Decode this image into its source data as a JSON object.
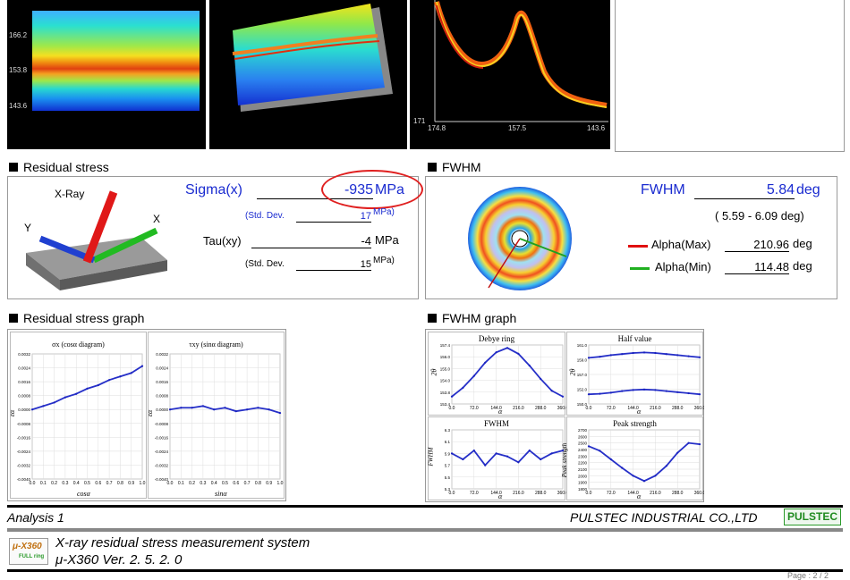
{
  "top_panels": {
    "p1_ticks": [
      "166.2",
      "153.8",
      "143.6"
    ],
    "p3_xticks": [
      "174.8",
      "157.5",
      "143.6"
    ],
    "p3_yticks": [
      "171"
    ]
  },
  "residual": {
    "heading": "Residual stress",
    "xray_label": "X-Ray",
    "x_label": "X",
    "y_label": "Y",
    "sigma_label": "Sigma(x)",
    "sigma_value": "-935",
    "sigma_unit": "MPa",
    "std1_label": "(Std. Dev.",
    "std1_value": "17",
    "std1_unit": "MPa)",
    "tau_label": "Tau(xy)",
    "tau_value": "-4",
    "tau_unit": "MPa",
    "std2_label": "(Std. Dev.",
    "std2_value": "15",
    "std2_unit": "MPa)"
  },
  "fwhm": {
    "heading": "FWHM",
    "label": "FWHM",
    "value": "5.84",
    "unit": "deg",
    "range": "( 5.59 - 6.09 deg)",
    "alpha_max_label": "Alpha(Max)",
    "alpha_max_value": "210.96",
    "alpha_max_unit": "deg",
    "alpha_min_label": "Alpha(Min)",
    "alpha_min_value": "114.48",
    "alpha_min_unit": "deg",
    "max_color": "#e01010",
    "min_color": "#20b020"
  },
  "rs_graph": {
    "heading": "Residual stress graph",
    "left_title": "σx (cosα diagram)",
    "right_title": "τxy (sinα diagram)",
    "left_xlabel": "cosα",
    "right_xlabel": "sinα",
    "left_ylabel": "εα",
    "right_ylabel": "εα",
    "xticks": [
      "0.0",
      "0.1",
      "0.2",
      "0.3",
      "0.4",
      "0.5",
      "0.6",
      "0.7",
      "0.8",
      "0.9",
      "1.0"
    ],
    "left_yticks": [
      "0.0032",
      "0.0024",
      "0.0016",
      "0.0008",
      "0.0000",
      "-0.0008",
      "-0.0016",
      "-0.0024",
      "-0.0032",
      "-0.0040"
    ],
    "right_yticks": [
      "0.0032",
      "0.0024",
      "0.0016",
      "0.0008",
      "0.0000",
      "-0.0008",
      "-0.0016",
      "-0.0024",
      "-0.0032",
      "-0.0040"
    ]
  },
  "fwhm_graph": {
    "heading": "FWHM graph",
    "debye_title": "Debye ring",
    "half_title": "Half value",
    "fwhm_title": "FWHM",
    "peak_title": "Peak strength",
    "xticks": [
      "0.0",
      "72.0",
      "144.0",
      "216.0",
      "288.0",
      "360.0"
    ],
    "debye_yticks": [
      "157.4",
      "156.0",
      "155.0",
      "154.0",
      "153.8",
      "153.4"
    ],
    "half_yticks": [
      "161.0",
      "159.0",
      "157.0",
      "152.0",
      "150.0"
    ],
    "fwhm_yticks": [
      "6.3",
      "6.1",
      "5.9",
      "5.7",
      "5.5",
      "5.3"
    ],
    "peak_yticks": [
      "2700",
      "2600",
      "2500",
      "2400",
      "2300",
      "2200",
      "2100",
      "2000",
      "1900",
      "1800"
    ],
    "xlabel": "α",
    "debye_ylabel": "2θ",
    "half_ylabel": "2θ",
    "fwhm_ylabel": "FWHM",
    "peak_ylabel": "Peak strength"
  },
  "footer": {
    "analysis": "Analysis 1",
    "company": "PULSTEC INDUSTRIAL CO.,LTD",
    "brand": "PULSTEC",
    "system": "X-ray residual stress measurement system",
    "version": "μ-X360  Ver. 2. 5. 2. 0",
    "logo_text": "μ-X360",
    "logo_sub": "FULL ring",
    "page": "Page : 2 / 2"
  },
  "chart_data": [
    {
      "type": "line",
      "title": "σx (cosα diagram)",
      "xlabel": "cosα",
      "ylabel": "εα",
      "x": [
        0.0,
        0.1,
        0.2,
        0.3,
        0.4,
        0.5,
        0.6,
        0.7,
        0.8,
        0.9,
        1.0
      ],
      "series": [
        {
          "values": [
            0.0,
            0.0002,
            0.0004,
            0.0007,
            0.0009,
            0.0012,
            0.0014,
            0.0017,
            0.0019,
            0.0021,
            0.0025
          ]
        }
      ],
      "xlim": [
        0,
        1
      ],
      "ylim": [
        -0.004,
        0.0032
      ]
    },
    {
      "type": "line",
      "title": "τxy (sinα diagram)",
      "xlabel": "sinα",
      "ylabel": "εα",
      "x": [
        0.0,
        0.1,
        0.2,
        0.3,
        0.4,
        0.5,
        0.6,
        0.7,
        0.8,
        0.9,
        1.0
      ],
      "series": [
        {
          "values": [
            0.0,
            0.0001,
            0.0001,
            0.0002,
            0.0,
            0.0001,
            -0.0001,
            0.0,
            0.0001,
            0.0,
            -0.0002
          ]
        }
      ],
      "xlim": [
        0,
        1
      ],
      "ylim": [
        -0.004,
        0.0032
      ]
    },
    {
      "type": "line",
      "title": "Debye ring",
      "xlabel": "α",
      "ylabel": "2θ",
      "x": [
        0,
        36,
        72,
        108,
        144,
        180,
        216,
        252,
        288,
        324,
        360
      ],
      "series": [
        {
          "values": [
            153.9,
            154.5,
            155.3,
            156.2,
            156.9,
            157.2,
            156.8,
            156.0,
            155.1,
            154.3,
            153.9
          ]
        }
      ],
      "xlim": [
        0,
        360
      ],
      "ylim": [
        153.4,
        157.4
      ]
    },
    {
      "type": "line",
      "title": "Half value",
      "xlabel": "α",
      "ylabel": "2θ",
      "x": [
        0,
        36,
        72,
        108,
        144,
        180,
        216,
        252,
        288,
        324,
        360
      ],
      "series": [
        {
          "values": [
            158.6,
            158.8,
            159.1,
            159.3,
            159.5,
            159.6,
            159.5,
            159.3,
            159.1,
            158.9,
            158.7
          ]
        },
        {
          "values": [
            151.8,
            151.9,
            152.1,
            152.4,
            152.6,
            152.7,
            152.6,
            152.4,
            152.2,
            152.0,
            151.8
          ]
        }
      ],
      "xlim": [
        0,
        360
      ],
      "ylim": [
        150,
        161
      ]
    },
    {
      "type": "line",
      "title": "FWHM",
      "xlabel": "α",
      "ylabel": "FWHM",
      "x": [
        0,
        36,
        72,
        108,
        144,
        180,
        216,
        252,
        288,
        324,
        360
      ],
      "series": [
        {
          "values": [
            5.9,
            5.8,
            5.95,
            5.7,
            5.9,
            5.85,
            5.75,
            5.95,
            5.8,
            5.9,
            5.95
          ]
        }
      ],
      "xlim": [
        0,
        360
      ],
      "ylim": [
        5.3,
        6.3
      ]
    },
    {
      "type": "line",
      "title": "Peak strength",
      "xlabel": "α",
      "ylabel": "Peak strength",
      "x": [
        0,
        36,
        72,
        108,
        144,
        180,
        216,
        252,
        288,
        324,
        360
      ],
      "series": [
        {
          "values": [
            2450,
            2380,
            2250,
            2120,
            2000,
            1920,
            2000,
            2150,
            2350,
            2500,
            2480
          ]
        }
      ],
      "xlim": [
        0,
        360
      ],
      "ylim": [
        1800,
        2700
      ]
    }
  ]
}
